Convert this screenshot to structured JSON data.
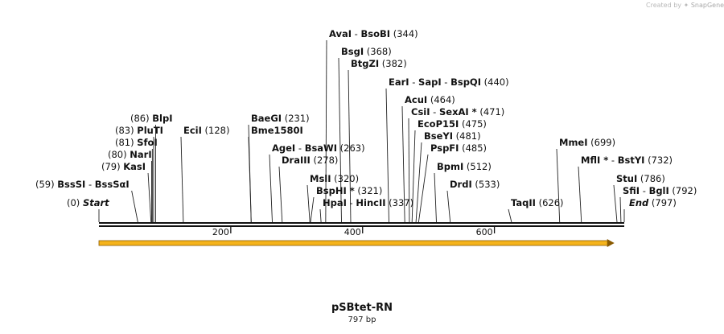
{
  "watermark": {
    "prefix": "Created by",
    "brand": "SnapGene"
  },
  "sequence": {
    "name": "pSBtet-RN",
    "length_label": "797 bp"
  },
  "ruler": {
    "start": 0,
    "end": 797,
    "ticks": [
      200,
      400,
      600
    ]
  },
  "feature_arrow": {
    "start": 0,
    "end": 782,
    "color": "#f5b31b"
  },
  "sites": [
    {
      "names": [
        "Start"
      ],
      "pos": 0,
      "label": "(0)",
      "italic": true,
      "number_first": true
    },
    {
      "names": [
        "BssSI",
        "BssSαI"
      ],
      "pos": 59,
      "label": "(59)",
      "number_first": true
    },
    {
      "names": [
        "KasI"
      ],
      "pos": 79,
      "label": "(79)",
      "number_first": true
    },
    {
      "names": [
        "NarI"
      ],
      "pos": 80,
      "label": "(80)",
      "number_first": true
    },
    {
      "names": [
        "SfoI"
      ],
      "pos": 81,
      "label": "(81)",
      "number_first": true
    },
    {
      "names": [
        "PluTI"
      ],
      "pos": 83,
      "label": "(83)",
      "number_first": true
    },
    {
      "names": [
        "BlpI"
      ],
      "pos": 86,
      "label": "(86)",
      "number_first": true
    },
    {
      "names": [
        "EciI"
      ],
      "pos": 128,
      "label": "(128)"
    },
    {
      "names": [
        "BaeGI"
      ],
      "pos": 231,
      "label": "(231)"
    },
    {
      "names": [
        "Bme1580I"
      ],
      "pos": 231,
      "label": ""
    },
    {
      "names": [
        "AgeI",
        "BsaWI"
      ],
      "pos": 263,
      "label": "(263)"
    },
    {
      "names": [
        "DraIII"
      ],
      "pos": 278,
      "label": "(278)"
    },
    {
      "names": [
        "AvaI",
        "BsoBI"
      ],
      "pos": 344,
      "label": "(344)"
    },
    {
      "names": [
        "MslI"
      ],
      "pos": 320,
      "label": "(320)"
    },
    {
      "names": [
        "BspHI *"
      ],
      "pos": 321,
      "label": "(321)"
    },
    {
      "names": [
        "BsgI"
      ],
      "pos": 368,
      "label": "(368)"
    },
    {
      "names": [
        "BtgZI"
      ],
      "pos": 382,
      "label": "(382)"
    },
    {
      "names": [
        "HpaI",
        "HincII"
      ],
      "pos": 337,
      "label": "(337)"
    },
    {
      "names": [
        "EarI",
        "SapI",
        "BspQI"
      ],
      "pos": 440,
      "label": "(440)"
    },
    {
      "names": [
        "AcuI"
      ],
      "pos": 464,
      "label": "(464)"
    },
    {
      "names": [
        "CsiI",
        "SexAI *"
      ],
      "pos": 471,
      "label": "(471)"
    },
    {
      "names": [
        "EcoP15I"
      ],
      "pos": 475,
      "label": "(475)"
    },
    {
      "names": [
        "BseYI"
      ],
      "pos": 481,
      "label": "(481)"
    },
    {
      "names": [
        "PspFI"
      ],
      "pos": 485,
      "label": "(485)"
    },
    {
      "names": [
        "BpmI"
      ],
      "pos": 512,
      "label": "(512)"
    },
    {
      "names": [
        "DrdI"
      ],
      "pos": 533,
      "label": "(533)"
    },
    {
      "names": [
        "TaqII"
      ],
      "pos": 626,
      "label": "(626)"
    },
    {
      "names": [
        "MmeI"
      ],
      "pos": 699,
      "label": "(699)"
    },
    {
      "names": [
        "MflI *",
        "BstYI"
      ],
      "pos": 732,
      "label": "(732)"
    },
    {
      "names": [
        "StuI"
      ],
      "pos": 786,
      "label": "(786)"
    },
    {
      "names": [
        "SfiI",
        "BglI"
      ],
      "pos": 792,
      "label": "(792)"
    },
    {
      "names": [
        "End"
      ],
      "pos": 797,
      "label": "(797)",
      "italic": true
    }
  ]
}
